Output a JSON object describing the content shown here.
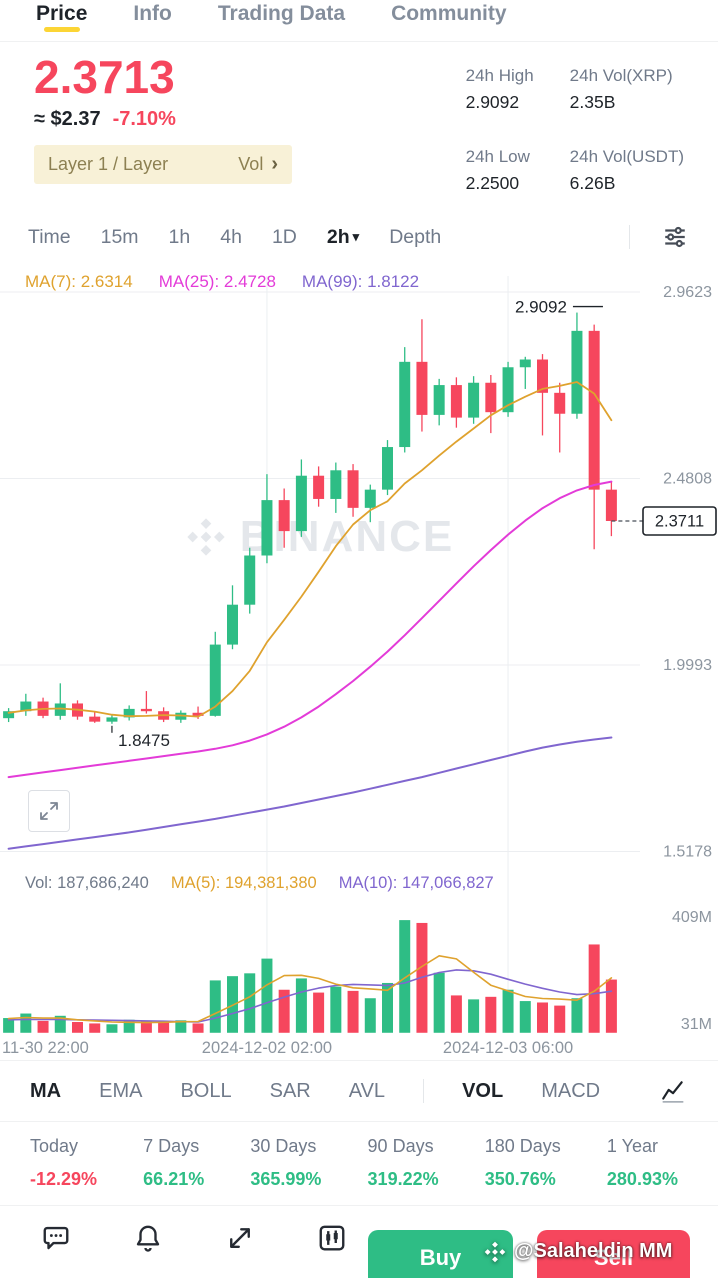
{
  "colors": {
    "up": "#2ebd85",
    "down": "#f6465d",
    "text": "#1e2329",
    "secondary_text": "#707a8a",
    "axis_text": "#8c959f",
    "grid": "#eceef1",
    "accent": "#fcd535",
    "ma1": "#dfa22e",
    "ma2": "#e33bd8",
    "ma3": "#8066cf",
    "tag_bg": "#f8f1d7",
    "tag_text": "#8d8052"
  },
  "icons": {
    "caret_down": "▾",
    "chevron_right": "›"
  },
  "nav": {
    "tabs": [
      "Price",
      "Info",
      "Trading Data",
      "Community"
    ]
  },
  "price_header": {
    "last_price": "2.3713",
    "fiat": "≈ $2.37",
    "change": "-7.10%",
    "tag_left": "Layer 1 / Layer",
    "tag_right": "Vol",
    "stats": [
      {
        "label": "24h High",
        "value": "2.9092"
      },
      {
        "label": "24h Vol(XRP)",
        "value": "2.35B"
      },
      {
        "label": "24h Low",
        "value": "2.2500"
      },
      {
        "label": "24h Vol(USDT)",
        "value": "6.26B"
      }
    ]
  },
  "timeframes": {
    "items": [
      "Time",
      "15m",
      "1h",
      "4h",
      "1D"
    ],
    "active_label": "2h",
    "depth_label": "Depth"
  },
  "chart_data": {
    "type": "candlestick",
    "interval": "2h",
    "watermark": "BINANCE",
    "ma_legend": [
      "MA(7): 2.6314",
      "MA(25): 2.4728",
      "MA(99): 1.8122"
    ],
    "vol_legend": [
      "Vol: 187,686,240",
      "MA(5): 194,381,380",
      "MA(10): 147,066,827"
    ],
    "price_axis_ticks": [
      "2.9623",
      "2.4808",
      "1.9993",
      "1.5178"
    ],
    "price_axis_values": [
      2.9623,
      2.4808,
      1.9993,
      1.5178
    ],
    "volume_axis_ticks": [
      "409M",
      "31M"
    ],
    "volume_axis_values": [
      409,
      31
    ],
    "x_labels": [
      {
        "label": "11-30 22:00",
        "index": 0
      },
      {
        "label": "2024-12-02 02:00",
        "index": 15
      },
      {
        "label": "2024-12-03 06:00",
        "index": 29
      }
    ],
    "annotations": {
      "high": {
        "label": "2.9092",
        "index": 33
      },
      "low": {
        "label": "1.8475",
        "index": 6
      },
      "last": {
        "label": "2.3711",
        "value": 2.3711
      }
    },
    "candles": [
      [
        1.862,
        1.888,
        1.852,
        1.88
      ],
      [
        1.88,
        1.925,
        1.868,
        1.905
      ],
      [
        1.905,
        1.915,
        1.862,
        1.868
      ],
      [
        1.868,
        1.952,
        1.858,
        1.9
      ],
      [
        1.9,
        1.908,
        1.858,
        1.866
      ],
      [
        1.866,
        1.878,
        1.85,
        1.853
      ],
      [
        1.853,
        1.87,
        1.8475,
        1.864
      ],
      [
        1.864,
        1.895,
        1.856,
        1.886
      ],
      [
        1.886,
        1.932,
        1.874,
        1.88
      ],
      [
        1.88,
        1.89,
        1.852,
        1.858
      ],
      [
        1.858,
        1.882,
        1.85,
        1.876
      ],
      [
        1.876,
        1.892,
        1.86,
        1.868
      ],
      [
        1.868,
        2.085,
        1.866,
        2.052
      ],
      [
        2.052,
        2.205,
        2.04,
        2.155
      ],
      [
        2.155,
        2.302,
        2.132,
        2.282
      ],
      [
        2.282,
        2.492,
        2.262,
        2.425
      ],
      [
        2.425,
        2.455,
        2.302,
        2.345
      ],
      [
        2.345,
        2.53,
        2.33,
        2.488
      ],
      [
        2.488,
        2.512,
        2.408,
        2.428
      ],
      [
        2.428,
        2.522,
        2.392,
        2.502
      ],
      [
        2.502,
        2.518,
        2.382,
        2.405
      ],
      [
        2.405,
        2.465,
        2.368,
        2.452
      ],
      [
        2.452,
        2.58,
        2.438,
        2.562
      ],
      [
        2.562,
        2.82,
        2.548,
        2.782
      ],
      [
        2.782,
        2.892,
        2.602,
        2.645
      ],
      [
        2.645,
        2.738,
        2.618,
        2.722
      ],
      [
        2.722,
        2.742,
        2.612,
        2.638
      ],
      [
        2.638,
        2.745,
        2.622,
        2.728
      ],
      [
        2.728,
        2.748,
        2.598,
        2.652
      ],
      [
        2.652,
        2.782,
        2.64,
        2.768
      ],
      [
        2.768,
        2.795,
        2.712,
        2.788
      ],
      [
        2.788,
        2.802,
        2.592,
        2.702
      ],
      [
        2.702,
        2.728,
        2.548,
        2.648
      ],
      [
        2.648,
        2.9092,
        2.635,
        2.862
      ],
      [
        2.862,
        2.878,
        2.298,
        2.452
      ],
      [
        2.452,
        2.472,
        2.332,
        2.3711
      ]
    ],
    "volumes_m": [
      52,
      68,
      42,
      60,
      38,
      33,
      30,
      46,
      40,
      36,
      44,
      33,
      185,
      200,
      210,
      262,
      152,
      192,
      142,
      163,
      148,
      122,
      176,
      398,
      388,
      212,
      132,
      118,
      127,
      152,
      112,
      107,
      96,
      122,
      312,
      188
    ],
    "ma7": [
      1.876,
      1.882,
      1.886,
      1.887,
      1.884,
      1.879,
      1.871,
      1.867,
      1.868,
      1.87,
      1.869,
      1.866,
      1.892,
      1.932,
      1.984,
      2.058,
      2.116,
      2.176,
      2.24,
      2.306,
      2.362,
      2.399,
      2.422,
      2.468,
      2.502,
      2.54,
      2.576,
      2.61,
      2.644,
      2.67,
      2.692,
      2.712,
      2.72,
      2.73,
      2.7,
      2.6314
    ],
    "ma25": [
      1.71,
      1.716,
      1.722,
      1.728,
      1.734,
      1.74,
      1.746,
      1.752,
      1.758,
      1.764,
      1.77,
      1.776,
      1.783,
      1.792,
      1.804,
      1.82,
      1.84,
      1.864,
      1.892,
      1.924,
      1.958,
      1.995,
      2.034,
      2.076,
      2.12,
      2.165,
      2.21,
      2.254,
      2.296,
      2.336,
      2.372,
      2.404,
      2.43,
      2.45,
      2.464,
      2.4728
    ],
    "ma99": [
      1.525,
      1.531,
      1.537,
      1.543,
      1.549,
      1.555,
      1.561,
      1.567,
      1.574,
      1.581,
      1.588,
      1.595,
      1.602,
      1.61,
      1.618,
      1.626,
      1.634,
      1.643,
      1.652,
      1.661,
      1.67,
      1.68,
      1.69,
      1.7,
      1.71,
      1.721,
      1.732,
      1.743,
      1.754,
      1.765,
      1.776,
      1.786,
      1.794,
      1.801,
      1.807,
      1.8122
    ],
    "vol_ma5": [
      50,
      54,
      52,
      52,
      46,
      42,
      38,
      37,
      36,
      37,
      39,
      40,
      68,
      97,
      127,
      169,
      202,
      203,
      192,
      172,
      159,
      155,
      150,
      194,
      234,
      272,
      261,
      214,
      168,
      148,
      128,
      121,
      119,
      115,
      147,
      194
    ],
    "vol_ma10": [
      46,
      47,
      47,
      47,
      46,
      45,
      44,
      43,
      42,
      41,
      39,
      38,
      52,
      68,
      85,
      106,
      126,
      144,
      158,
      167,
      171,
      169,
      167,
      176,
      196,
      213,
      222,
      219,
      207,
      189,
      172,
      157,
      144,
      135,
      138,
      147
    ]
  },
  "indicator_tabs": [
    "MA",
    "EMA",
    "BOLL",
    "SAR",
    "AVL",
    "VOL",
    "MACD"
  ],
  "performance": {
    "items": [
      {
        "label": "Today",
        "value": "-12.29%"
      },
      {
        "label": "7 Days",
        "value": "66.21%"
      },
      {
        "label": "30 Days",
        "value": "365.99%"
      },
      {
        "label": "90 Days",
        "value": "319.22%"
      },
      {
        "label": "180 Days",
        "value": "350.76%"
      },
      {
        "label": "1 Year",
        "value": "280.93%"
      }
    ]
  },
  "footer": {
    "buy_label": "Buy",
    "sell_label": "Sell",
    "watermark": "@Salaheldin MM"
  }
}
